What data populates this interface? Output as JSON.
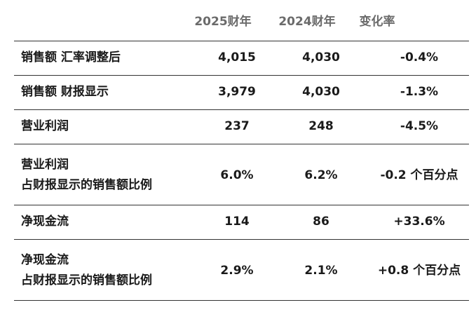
{
  "header": {
    "col1": "2025财年",
    "col2": "2024财年",
    "col3": "变化率"
  },
  "rows": [
    {
      "label": "销售额 汇率调整后",
      "v2025": "4,015",
      "v2024": "4,030",
      "change": "-0.4%"
    },
    {
      "label": "销售额 财报显示",
      "v2025": "3,979",
      "v2024": "4,030",
      "change": "-1.3%"
    },
    {
      "label": "营业利润",
      "v2025": "237",
      "v2024": "248",
      "change": "-4.5%"
    },
    {
      "label_line1": "营业利润",
      "label_line2": "占财报显示的销售额比例",
      "v2025": "6.0%",
      "v2024": "6.2%",
      "change": "-0.2 个百分点"
    },
    {
      "label": "净现金流",
      "v2025": "114",
      "v2024": "86",
      "change": "+33.6%"
    },
    {
      "label_line1": "净现金流",
      "label_line2": "占财报显示的销售额比例",
      "v2025": "2.9%",
      "v2024": "2.1%",
      "change": "+0.8 个百分点"
    }
  ]
}
